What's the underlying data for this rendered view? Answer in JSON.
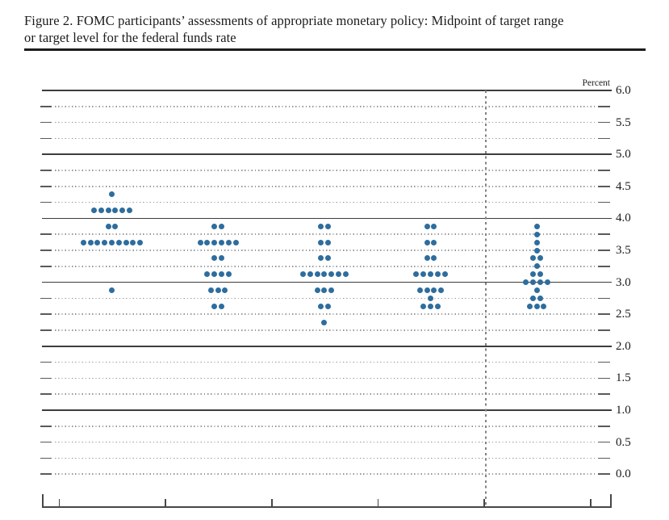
{
  "figure": {
    "title": "Figure 2. FOMC participants’ assessments of appropriate monetary policy: Midpoint of target range or target level for the federal funds rate",
    "title_line1": "Figure 2. FOMC participants’ assessments of appropriate monetary policy: Midpoint of target range",
    "title_line2": "or target level for the federal funds rate"
  },
  "chart": {
    "percent_label": "Percent",
    "y_axis": {
      "min": 0,
      "max": 6,
      "minor_step": 0.25,
      "label_step": 0.5,
      "tick_labels": [
        "6.0",
        "5.5",
        "5.0",
        "4.5",
        "4.0",
        "3.5",
        "3.0",
        "2.5",
        "2.0",
        "1.5",
        "1.0",
        "0.5",
        "0.0"
      ]
    }
  },
  "colors": {
    "dot": "#2e6d9e",
    "grid_solid": "#3d3d3d",
    "grid_dotted": "#979797",
    "axis": "#474747",
    "text": "#1a1a1a"
  },
  "chart_data": {
    "type": "scatter",
    "title": "Figure 2. FOMC participants’ assessments of appropriate monetary policy: Midpoint of target range or target level for the federal funds rate",
    "unit": "Percent",
    "ylim": [
      0.0,
      6.0
    ],
    "grid": "solid lines at integers, dotted lines each 0.25",
    "legend_position": "none",
    "dot_color": "#2e6d9e",
    "divider_after_column": 4,
    "columns": [
      {
        "key": "col1",
        "dots": [
          {
            "value": 4.375,
            "count": 1
          },
          {
            "value": 4.125,
            "count": 6
          },
          {
            "value": 3.875,
            "count": 2
          },
          {
            "value": 3.625,
            "count": 9
          },
          {
            "value": 2.875,
            "count": 1
          }
        ]
      },
      {
        "key": "col2",
        "dots": [
          {
            "value": 3.875,
            "count": 2
          },
          {
            "value": 3.625,
            "count": 6
          },
          {
            "value": 3.375,
            "count": 2
          },
          {
            "value": 3.125,
            "count": 4
          },
          {
            "value": 2.875,
            "count": 3
          },
          {
            "value": 2.625,
            "count": 2
          }
        ]
      },
      {
        "key": "col3",
        "dots": [
          {
            "value": 3.875,
            "count": 2
          },
          {
            "value": 3.625,
            "count": 2
          },
          {
            "value": 3.375,
            "count": 2
          },
          {
            "value": 3.125,
            "count": 7
          },
          {
            "value": 2.875,
            "count": 3
          },
          {
            "value": 2.625,
            "count": 2
          },
          {
            "value": 2.375,
            "count": 1
          }
        ]
      },
      {
        "key": "col4",
        "dots": [
          {
            "value": 3.875,
            "count": 2
          },
          {
            "value": 3.625,
            "count": 2
          },
          {
            "value": 3.375,
            "count": 2
          },
          {
            "value": 3.125,
            "count": 5
          },
          {
            "value": 2.875,
            "count": 4
          },
          {
            "value": 2.75,
            "count": 1
          },
          {
            "value": 2.625,
            "count": 3
          }
        ]
      },
      {
        "key": "col5",
        "dots": [
          {
            "value": 3.875,
            "count": 1
          },
          {
            "value": 3.75,
            "count": 1
          },
          {
            "value": 3.625,
            "count": 1
          },
          {
            "value": 3.5,
            "count": 1
          },
          {
            "value": 3.375,
            "count": 2
          },
          {
            "value": 3.25,
            "count": 1
          },
          {
            "value": 3.125,
            "count": 2
          },
          {
            "value": 3.0,
            "count": 4
          },
          {
            "value": 2.875,
            "count": 1
          },
          {
            "value": 2.75,
            "count": 2
          },
          {
            "value": 2.625,
            "count": 3
          }
        ]
      }
    ]
  }
}
